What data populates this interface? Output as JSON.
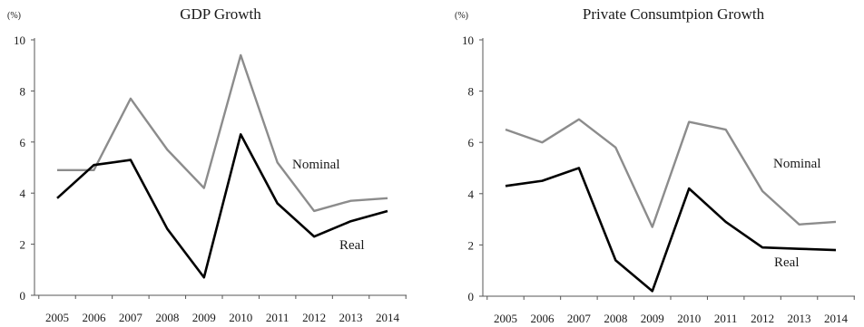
{
  "chart_data": [
    {
      "type": "line",
      "title": "GDP Growth",
      "unit": "(%)",
      "xlabel": "",
      "ylabel": "",
      "x": [
        "2005",
        "2006",
        "2007",
        "2008",
        "2009",
        "2010",
        "2011",
        "2012",
        "2013",
        "2014"
      ],
      "ylim": [
        0,
        10
      ],
      "yticks": [
        "0",
        "2",
        "4",
        "6",
        "8",
        "10"
      ],
      "grid": false,
      "series": [
        {
          "name": "Nominal",
          "color": "#8c8c8c",
          "values": [
            4.9,
            4.9,
            7.7,
            5.7,
            4.2,
            9.4,
            5.2,
            3.3,
            3.7,
            3.8
          ]
        },
        {
          "name": "Real",
          "color": "#000000",
          "values": [
            3.8,
            5.1,
            5.3,
            2.6,
            0.7,
            6.3,
            3.6,
            2.3,
            2.9,
            3.3
          ]
        }
      ]
    },
    {
      "type": "line",
      "title": "Private Consumtpion Growth",
      "unit": "(%)",
      "xlabel": "",
      "ylabel": "",
      "x": [
        "2005",
        "2006",
        "2007",
        "2008",
        "2009",
        "2010",
        "2011",
        "2012",
        "2013",
        "2014"
      ],
      "ylim": [
        0,
        10
      ],
      "yticks": [
        "0",
        "2",
        "4",
        "6",
        "8",
        "10"
      ],
      "grid": false,
      "series": [
        {
          "name": "Nominal",
          "color": "#8c8c8c",
          "values": [
            6.5,
            6.0,
            6.9,
            5.8,
            2.7,
            6.8,
            6.5,
            4.1,
            2.8,
            2.9
          ]
        },
        {
          "name": "Real",
          "color": "#000000",
          "values": [
            4.3,
            4.5,
            5.0,
            1.4,
            0.2,
            4.2,
            2.9,
            1.9,
            1.85,
            1.8
          ]
        }
      ]
    }
  ]
}
